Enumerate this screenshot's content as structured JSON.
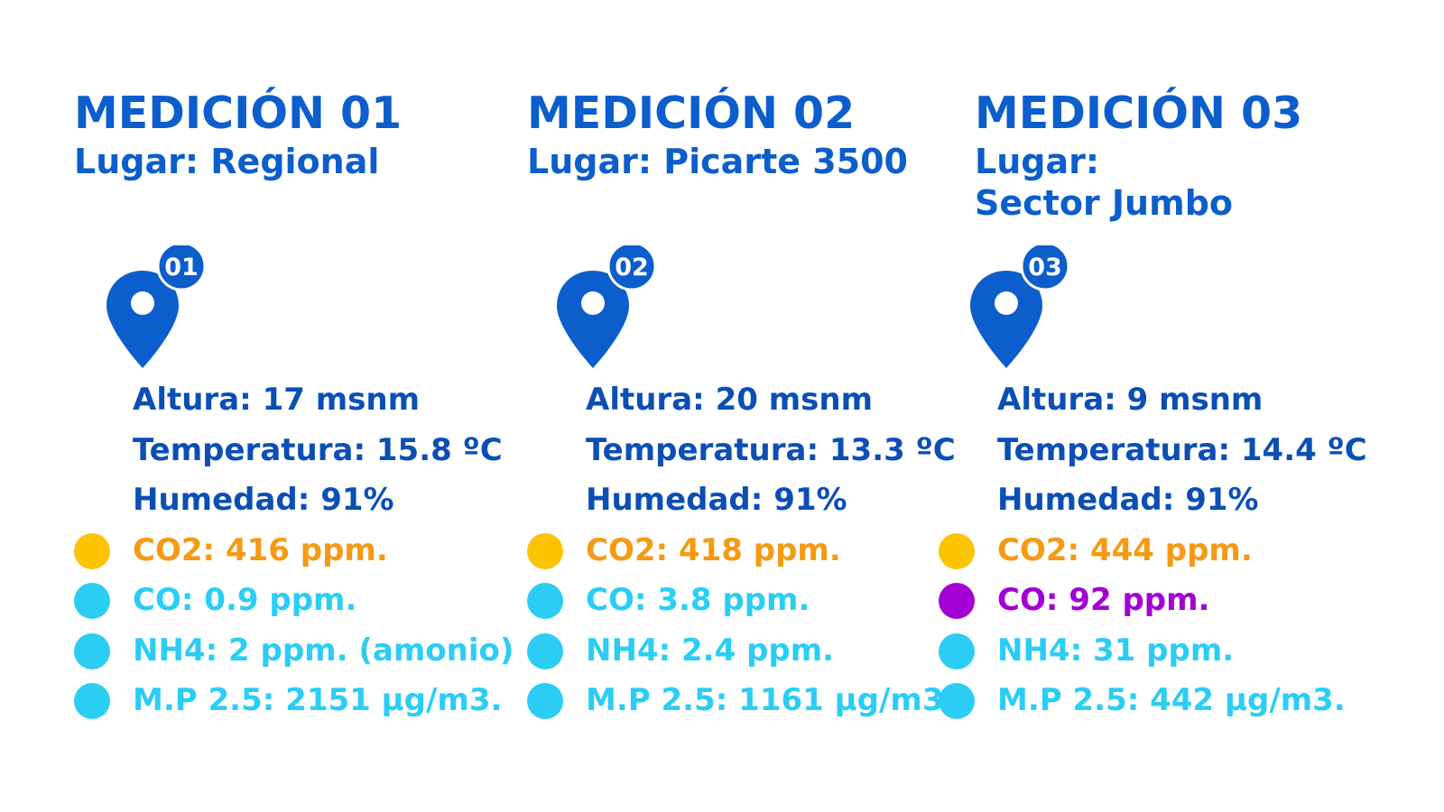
{
  "colors": {
    "title": "#0b5ecb",
    "info": "#0b4fb5",
    "yellow_dot": "#fcc400",
    "orange_text": "#f59a12",
    "cyan": "#2bcdf5",
    "purple": "#a300d6"
  },
  "measurements": [
    {
      "title": "MEDICIÓN 01",
      "place_label": "Lugar:",
      "place_name": "Regional",
      "pin_icon": "map-pin-icon",
      "pin_badge": "01",
      "altura": "Altura: 17 msnm",
      "temperatura": "Temperatura: 15.8 ºC",
      "humedad": "Humedad: 91%",
      "co2": "CO2: 416 ppm.",
      "co": "CO: 0.9 ppm.",
      "nh4": "NH4: 2 ppm. (amonio)",
      "mp25": "M.P 2.5: 2151 µg/m3."
    },
    {
      "title": "MEDICIÓN 02",
      "place_label": "Lugar:",
      "place_name": "Picarte 3500",
      "pin_icon": "map-pin-icon",
      "pin_badge": "02",
      "altura": "Altura: 20 msnm",
      "temperatura": "Temperatura: 13.3 ºC",
      "humedad": "Humedad: 91%",
      "co2": "CO2: 418 ppm.",
      "co": "CO: 3.8 ppm.",
      "nh4": "NH4: 2.4 ppm.",
      "mp25": "M.P 2.5: 1161 µg/m3."
    },
    {
      "title": "MEDICIÓN 03",
      "place_label": "Lugar:",
      "place_name": "Sector Jumbo",
      "pin_icon": "map-pin-icon",
      "pin_badge": "03",
      "altura": "Altura: 9 msnm",
      "temperatura": "Temperatura: 14.4 ºC",
      "humedad": "Humedad: 91%",
      "co2": "CO2: 444 ppm.",
      "co": "CO: 92 ppm.",
      "nh4": "NH4: 31 ppm.",
      "mp25": "M.P 2.5: 442 µg/m3."
    }
  ]
}
